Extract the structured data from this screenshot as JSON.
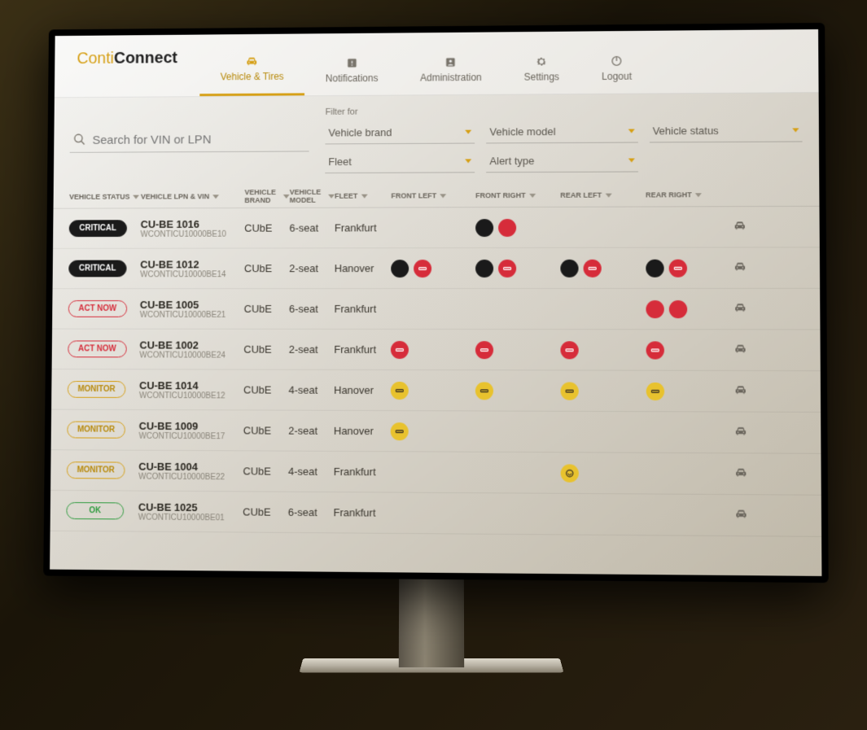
{
  "brand": {
    "part1": "Conti",
    "part2": "Connect"
  },
  "colors": {
    "accent": "#d6a017",
    "critical_bg": "#1a1a1a",
    "critical_fg": "#ffffff",
    "actnow_border": "#d62c3a",
    "actnow_fg": "#d62c3a",
    "monitor_border": "#d6a017",
    "monitor_fg": "#b88a0c",
    "ok_border": "#2e9b3e",
    "ok_fg": "#2e9b3e",
    "icon_black": "#1a1a1a",
    "icon_red": "#d62c3a",
    "icon_yellow": "#e8c22e"
  },
  "tabs": [
    {
      "label": "Vehicle & Tires",
      "icon": "car",
      "active": true
    },
    {
      "label": "Notifications",
      "icon": "bell",
      "active": false
    },
    {
      "label": "Administration",
      "icon": "user",
      "active": false
    },
    {
      "label": "Settings",
      "icon": "gear",
      "active": false
    },
    {
      "label": "Logout",
      "icon": "power",
      "active": false
    }
  ],
  "search": {
    "placeholder": "Search for VIN or LPN"
  },
  "filter_label": "Filter for",
  "filters": {
    "row1": [
      {
        "label": "Vehicle brand"
      },
      {
        "label": "Vehicle model"
      },
      {
        "label": "Vehicle status"
      }
    ],
    "row2": [
      {
        "label": "Fleet"
      },
      {
        "label": "Alert type"
      },
      {
        "label": ""
      }
    ]
  },
  "columns": [
    {
      "key": "status",
      "label": "VEHICLE STATUS"
    },
    {
      "key": "lpn",
      "label": "VEHICLE LPN & VIN"
    },
    {
      "key": "brand",
      "label": "VEHICLE BRAND"
    },
    {
      "key": "model",
      "label": "VEHICLE MODEL"
    },
    {
      "key": "fleet",
      "label": "FLEET"
    },
    {
      "key": "fl",
      "label": "FRONT LEFT"
    },
    {
      "key": "fr",
      "label": "FRONT RIGHT"
    },
    {
      "key": "rl",
      "label": "REAR LEFT"
    },
    {
      "key": "rr",
      "label": "REAR RIGHT"
    }
  ],
  "status_styles": {
    "CRITICAL": {
      "bg": "#1a1a1a",
      "fg": "#ffffff",
      "border": "#1a1a1a"
    },
    "ACT NOW": {
      "bg": "transparent",
      "fg": "#d62c3a",
      "border": "#d62c3a"
    },
    "MONITOR": {
      "bg": "transparent",
      "fg": "#b88a0c",
      "border": "#d6a017"
    },
    "OK": {
      "bg": "transparent",
      "fg": "#2e9b3e",
      "border": "#2e9b3e"
    }
  },
  "icon_types": {
    "pressure": "exclaim",
    "temp": "thermo",
    "tread": "tread",
    "leak": "leak"
  },
  "rows": [
    {
      "status": "CRITICAL",
      "lpn": "CU-BE 1016",
      "vin": "WCONTICU10000BE10",
      "brand": "CUbE",
      "model": "6-seat",
      "fleet": "Frankfurt",
      "tires": {
        "fl": [],
        "fr": [
          {
            "c": "#1a1a1a",
            "t": "pressure"
          },
          {
            "c": "#d62c3a",
            "t": "temp"
          }
        ],
        "rl": [],
        "rr": []
      }
    },
    {
      "status": "CRITICAL",
      "lpn": "CU-BE 1012",
      "vin": "WCONTICU10000BE14",
      "brand": "CUbE",
      "model": "2-seat",
      "fleet": "Hanover",
      "tires": {
        "fl": [
          {
            "c": "#1a1a1a",
            "t": "pressure"
          },
          {
            "c": "#d62c3a",
            "t": "tread"
          }
        ],
        "fr": [
          {
            "c": "#1a1a1a",
            "t": "pressure"
          },
          {
            "c": "#d62c3a",
            "t": "tread"
          }
        ],
        "rl": [
          {
            "c": "#1a1a1a",
            "t": "pressure"
          },
          {
            "c": "#d62c3a",
            "t": "tread"
          }
        ],
        "rr": [
          {
            "c": "#1a1a1a",
            "t": "pressure"
          },
          {
            "c": "#d62c3a",
            "t": "tread"
          }
        ]
      }
    },
    {
      "status": "ACT NOW",
      "lpn": "CU-BE 1005",
      "vin": "WCONTICU10000BE21",
      "brand": "CUbE",
      "model": "6-seat",
      "fleet": "Frankfurt",
      "tires": {
        "fl": [],
        "fr": [],
        "rl": [],
        "rr": [
          {
            "c": "#d62c3a",
            "t": "pressure"
          },
          {
            "c": "#d62c3a",
            "t": "temp"
          }
        ]
      }
    },
    {
      "status": "ACT NOW",
      "lpn": "CU-BE 1002",
      "vin": "WCONTICU10000BE24",
      "brand": "CUbE",
      "model": "2-seat",
      "fleet": "Frankfurt",
      "tires": {
        "fl": [
          {
            "c": "#d62c3a",
            "t": "tread"
          }
        ],
        "fr": [
          {
            "c": "#d62c3a",
            "t": "tread"
          }
        ],
        "rl": [
          {
            "c": "#d62c3a",
            "t": "tread"
          }
        ],
        "rr": [
          {
            "c": "#d62c3a",
            "t": "tread"
          }
        ]
      }
    },
    {
      "status": "MONITOR",
      "lpn": "CU-BE 1014",
      "vin": "WCONTICU10000BE12",
      "brand": "CUbE",
      "model": "4-seat",
      "fleet": "Hanover",
      "tires": {
        "fl": [
          {
            "c": "#e8c22e",
            "t": "tread"
          }
        ],
        "fr": [
          {
            "c": "#e8c22e",
            "t": "tread"
          }
        ],
        "rl": [
          {
            "c": "#e8c22e",
            "t": "tread"
          }
        ],
        "rr": [
          {
            "c": "#e8c22e",
            "t": "tread"
          }
        ]
      }
    },
    {
      "status": "MONITOR",
      "lpn": "CU-BE 1009",
      "vin": "WCONTICU10000BE17",
      "brand": "CUbE",
      "model": "2-seat",
      "fleet": "Hanover",
      "tires": {
        "fl": [
          {
            "c": "#e8c22e",
            "t": "tread"
          }
        ],
        "fr": [],
        "rl": [],
        "rr": []
      }
    },
    {
      "status": "MONITOR",
      "lpn": "CU-BE 1004",
      "vin": "WCONTICU10000BE22",
      "brand": "CUbE",
      "model": "4-seat",
      "fleet": "Frankfurt",
      "tires": {
        "fl": [],
        "fr": [],
        "rl": [
          {
            "c": "#e8c22e",
            "t": "leak"
          }
        ],
        "rr": []
      }
    },
    {
      "status": "OK",
      "lpn": "CU-BE 1025",
      "vin": "WCONTICU10000BE01",
      "brand": "CUbE",
      "model": "6-seat",
      "fleet": "Frankfurt",
      "tires": {
        "fl": [],
        "fr": [],
        "rl": [],
        "rr": []
      }
    }
  ]
}
